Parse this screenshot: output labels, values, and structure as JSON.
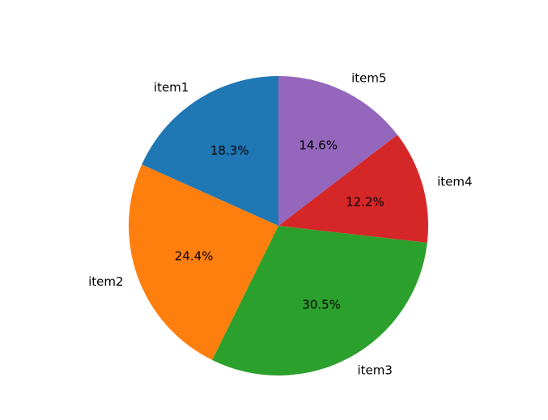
{
  "chart_data": {
    "type": "pie",
    "start_angle_deg": 90,
    "direction": "counterclockwise",
    "slices": [
      {
        "label": "item1",
        "value": 18.3,
        "pct_label": "18.3%",
        "color": "#1f77b4"
      },
      {
        "label": "item2",
        "value": 24.4,
        "pct_label": "24.4%",
        "color": "#ff7f0e"
      },
      {
        "label": "item3",
        "value": 30.5,
        "pct_label": "30.5%",
        "color": "#2ca02c"
      },
      {
        "label": "item4",
        "value": 12.2,
        "pct_label": "12.2%",
        "color": "#d62728"
      },
      {
        "label": "item5",
        "value": 14.6,
        "pct_label": "14.6%",
        "color": "#9467bd"
      }
    ]
  }
}
